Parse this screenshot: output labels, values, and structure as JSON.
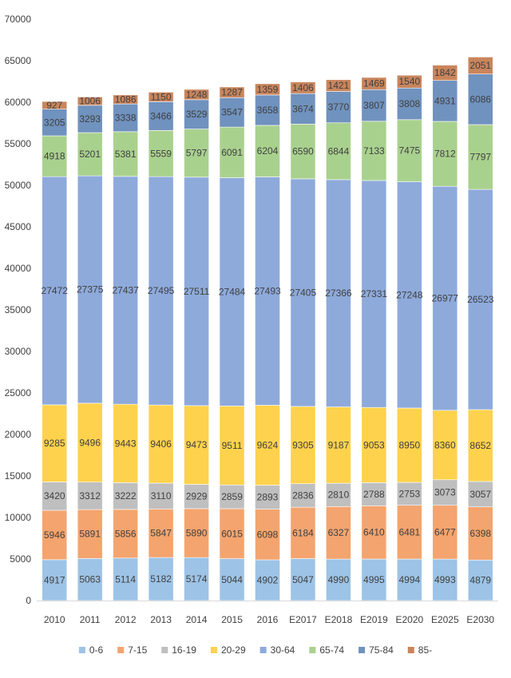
{
  "chart_data": {
    "type": "stacked-bar",
    "title": "",
    "xlabel": "",
    "ylabel": "",
    "ylim": [
      0,
      70000
    ],
    "yticks": [
      0,
      5000,
      10000,
      15000,
      20000,
      25000,
      30000,
      35000,
      40000,
      45000,
      50000,
      55000,
      60000,
      65000,
      70000
    ],
    "ytick_labels": [
      "0",
      "5000",
      "10000",
      "15000",
      "20000",
      "25000",
      "30000",
      "35000",
      "40000",
      "45000",
      "50000",
      "55000",
      "60000",
      "65000",
      "70000"
    ],
    "categories": [
      "2010",
      "2011",
      "2012",
      "2013",
      "2014",
      "2015",
      "2016",
      "E2017",
      "E2018",
      "E2019",
      "E2020",
      "E2025",
      "E2030"
    ],
    "legend_position": "bottom",
    "grid": false,
    "series": [
      {
        "name": "0-6",
        "color": "#9DC3E6",
        "values": [
          4917,
          5063,
          5114,
          5182,
          5174,
          5044,
          4902,
          5047,
          4990,
          4995,
          4994,
          4993,
          4879
        ]
      },
      {
        "name": "7-15",
        "color": "#F4A46E",
        "values": [
          5946,
          5891,
          5856,
          5847,
          5890,
          6015,
          6098,
          6184,
          6327,
          6410,
          6481,
          6477,
          6398
        ]
      },
      {
        "name": "16-19",
        "color": "#BFBFBF",
        "values": [
          3420,
          3312,
          3222,
          3110,
          2929,
          2859,
          2893,
          2836,
          2810,
          2788,
          2753,
          3073,
          3057
        ]
      },
      {
        "name": "20-29",
        "color": "#FFD24D",
        "values": [
          9285,
          9496,
          9443,
          9406,
          9473,
          9511,
          9624,
          9305,
          9187,
          9053,
          8950,
          8360,
          8652
        ]
      },
      {
        "name": "30-64",
        "color": "#8EAADB",
        "values": [
          27472,
          27375,
          27437,
          27495,
          27511,
          27484,
          27493,
          27405,
          27366,
          27331,
          27248,
          26977,
          26523
        ]
      },
      {
        "name": "65-74",
        "color": "#A9D18E",
        "values": [
          4918,
          5201,
          5381,
          5559,
          5797,
          6091,
          6204,
          6590,
          6844,
          7133,
          7475,
          7812,
          7797
        ]
      },
      {
        "name": "75-84",
        "color": "#7092BE",
        "values": [
          3205,
          3293,
          3338,
          3466,
          3529,
          3547,
          3658,
          3674,
          3770,
          3807,
          3808,
          4931,
          6086
        ]
      },
      {
        "name": "85-",
        "color": "#C9855C",
        "values": [
          927,
          1006,
          1086,
          1150,
          1248,
          1287,
          1359,
          1406,
          1421,
          1469,
          1540,
          1842,
          2051
        ]
      }
    ]
  }
}
